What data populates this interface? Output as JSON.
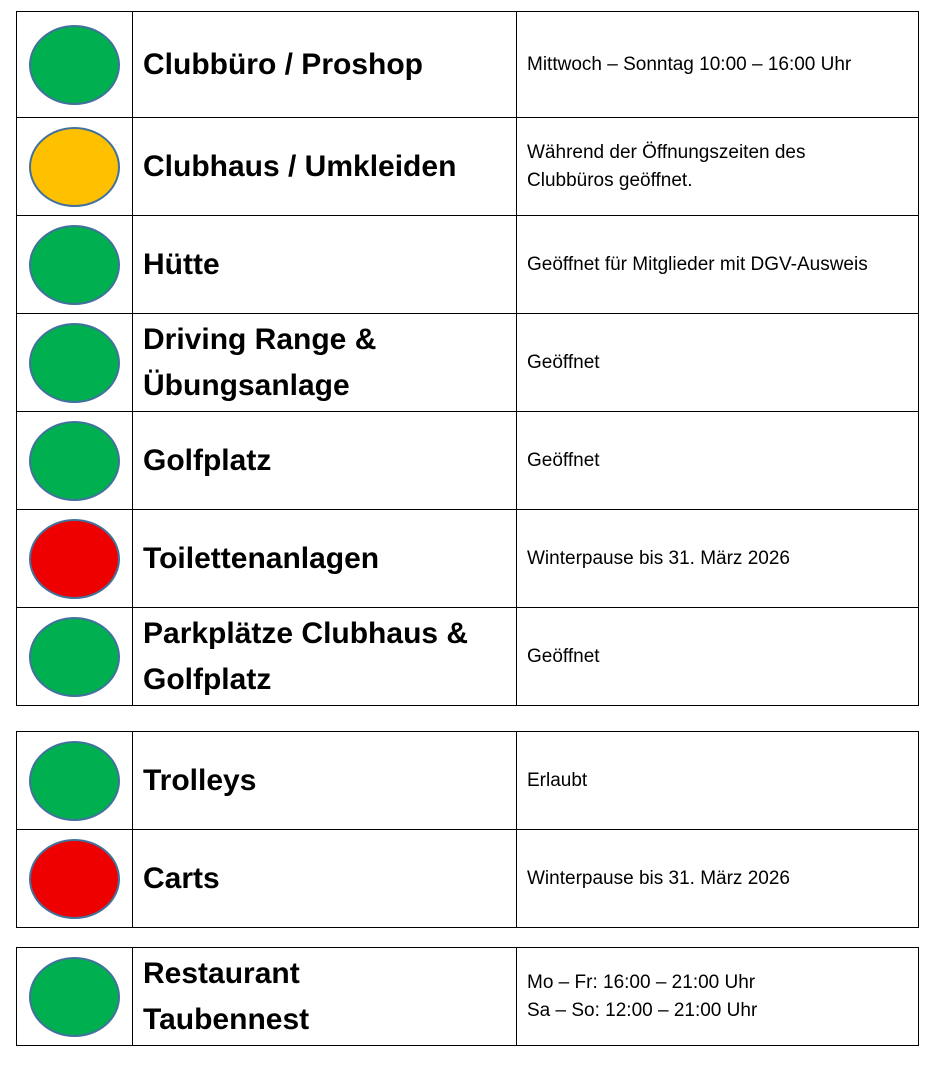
{
  "colors": {
    "green": "#00b050",
    "yellow": "#ffc000",
    "red": "#ee0000"
  },
  "sections": [
    {
      "rows": [
        {
          "status": "green",
          "name": "Clubbüro / Proshop",
          "info": "Mittwoch – Sonntag 10:00 – 16:00 Uhr"
        },
        {
          "status": "yellow",
          "name": "Clubhaus / Umkleiden",
          "info": "Während der Öffnungszeiten des\nClubbüros geöffnet."
        },
        {
          "status": "green",
          "name": "Hütte",
          "info": "Geöffnet für Mitglieder mit DGV-Ausweis"
        },
        {
          "status": "green",
          "name": "Driving Range &\nÜbungsanlage",
          "info": "Geöffnet"
        },
        {
          "status": "green",
          "name": "Golfplatz",
          "info": "Geöffnet"
        },
        {
          "status": "red",
          "name": "Toilettenanlagen",
          "info": "Winterpause bis 31. März 2026"
        },
        {
          "status": "green",
          "name": "Parkplätze Clubhaus &\nGolfplatz",
          "info": "Geöffnet"
        }
      ]
    },
    {
      "rows": [
        {
          "status": "green",
          "name": "Trolleys",
          "info": "Erlaubt"
        },
        {
          "status": "red",
          "name": "Carts",
          "info": "Winterpause bis 31. März 2026"
        }
      ]
    },
    {
      "rows": [
        {
          "status": "green",
          "name": "Restaurant\nTaubennest",
          "info": "Mo – Fr: 16:00 – 21:00 Uhr\nSa – So: 12:00 – 21:00 Uhr"
        }
      ]
    }
  ]
}
